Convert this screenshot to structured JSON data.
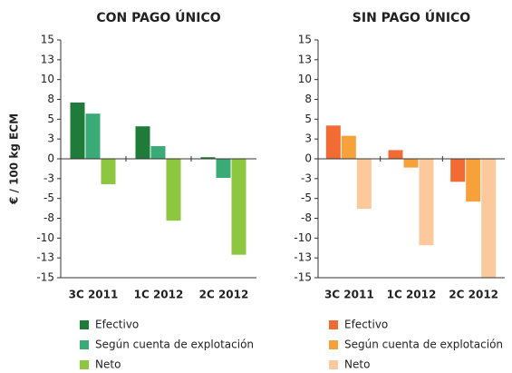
{
  "chart_data": [
    {
      "type": "bar",
      "title": "CON PAGO ÚNICO",
      "ylabel": "€ / 100 kg ECM",
      "categories": [
        "3C 2011",
        "1C 2012",
        "2C 2012"
      ],
      "series": [
        {
          "name": "Efectivo",
          "color": "#1e7b3a",
          "values": [
            7.1,
            4.1,
            0.2
          ]
        },
        {
          "name": "Según cuenta de explotación",
          "color": "#3aaa77",
          "values": [
            5.7,
            1.6,
            -2.4
          ]
        },
        {
          "name": "Neto",
          "color": "#8dc63f",
          "values": [
            -3.2,
            -7.8,
            -12.1
          ]
        }
      ],
      "ylim": [
        -15,
        15
      ],
      "yticks": [
        -15,
        {
          "value": -12.5,
          "label": "-13"
        },
        -10,
        {
          "value": -7.5,
          "label": "-8"
        },
        -5,
        {
          "value": -2.5,
          "label": "-3"
        },
        0,
        {
          "value": 2.5,
          "label": "3"
        },
        5,
        {
          "value": 7.5,
          "label": "8"
        },
        10,
        {
          "value": 12.5,
          "label": "13"
        },
        15
      ]
    },
    {
      "type": "bar",
      "title": "SIN PAGO ÚNICO",
      "categories": [
        "3C 2011",
        "1C 2012",
        "2C 2012"
      ],
      "series": [
        {
          "name": "Efectivo",
          "color": "#f26b35",
          "values": [
            4.2,
            1.1,
            -2.9
          ]
        },
        {
          "name": "Según cuenta de explotación",
          "color": "#f7a13a",
          "values": [
            2.9,
            -1.1,
            -5.4
          ]
        },
        {
          "name": "Neto",
          "color": "#fbc99b",
          "values": [
            -6.3,
            -10.9,
            -15
          ]
        }
      ],
      "ylim": [
        -15,
        15
      ],
      "yticks": [
        -15,
        {
          "value": -12.5,
          "label": "-13"
        },
        -10,
        {
          "value": -7.5,
          "label": "-8"
        },
        -5,
        {
          "value": -2.5,
          "label": "-3"
        },
        0,
        {
          "value": 2.5,
          "label": "3"
        },
        5,
        {
          "value": 7.5,
          "label": "8"
        },
        10,
        {
          "value": 12.5,
          "label": "13"
        },
        15
      ]
    }
  ]
}
